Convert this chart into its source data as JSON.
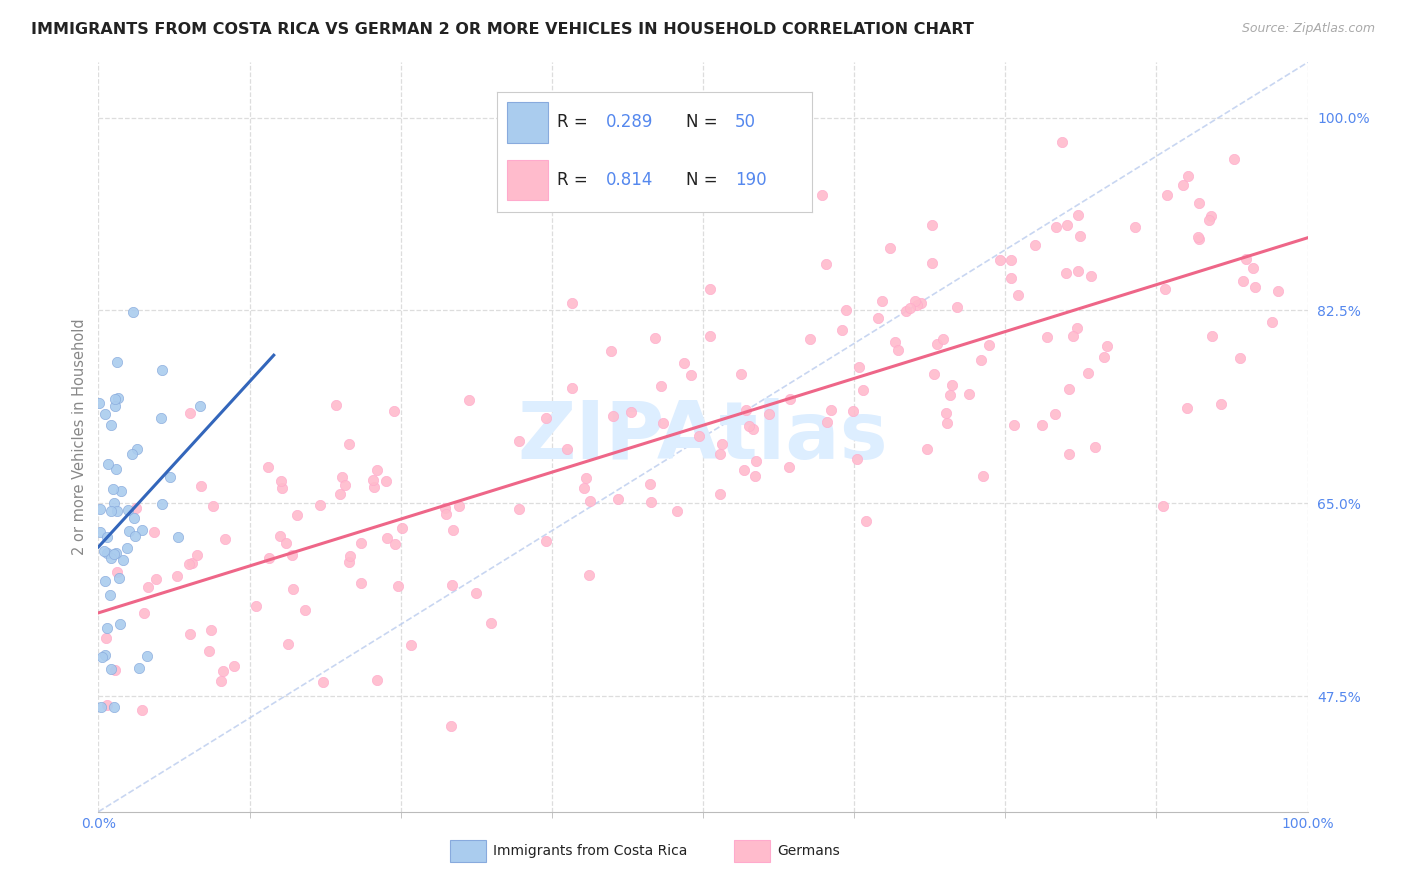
{
  "title": "IMMIGRANTS FROM COSTA RICA VS GERMAN 2 OR MORE VEHICLES IN HOUSEHOLD CORRELATION CHART",
  "source": "Source: ZipAtlas.com",
  "ylabel": "2 or more Vehicles in Household",
  "xlim": [
    0.0,
    1.0
  ],
  "ylim": [
    0.37,
    1.05
  ],
  "y_tick_vals_right": [
    0.475,
    0.65,
    0.825,
    1.0
  ],
  "y_tick_labels_right": [
    "47.5%",
    "65.0%",
    "82.5%",
    "100.0%"
  ],
  "x_tick_vals": [
    0.0,
    0.125,
    0.25,
    0.375,
    0.5,
    0.625,
    0.75,
    0.875,
    1.0
  ],
  "blue_scatter_color": "#AACCEE",
  "blue_scatter_edge": "#88AADD",
  "pink_scatter_color": "#FFBBCC",
  "pink_scatter_edge": "#FFAACC",
  "blue_line_color": "#3366BB",
  "pink_line_color": "#EE6688",
  "diag_color": "#BBCCEE",
  "grid_color": "#DDDDDD",
  "background_color": "#FFFFFF",
  "title_color": "#222222",
  "source_color": "#AAAAAA",
  "axis_label_color": "#888888",
  "tick_color": "#5588EE",
  "watermark_color": "#DDEEFF",
  "legend_box_edge": "#CCCCCC",
  "n_blue": 50,
  "n_pink": 190,
  "R_blue": 0.289,
  "R_pink": 0.814,
  "seed_blue": 7,
  "seed_pink": 99
}
